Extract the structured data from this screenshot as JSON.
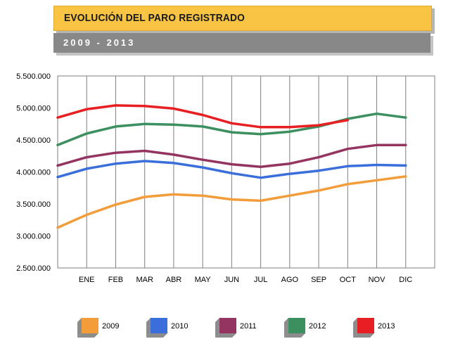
{
  "header": {
    "title": "EVOLUCIÓN DEL PARO REGISTRADO",
    "subtitle": "2009 - 2013"
  },
  "colors": {
    "title_band": "#f9c443",
    "subtitle_band": "#888888"
  },
  "chart_data": {
    "type": "line",
    "title": "",
    "xlabel": "",
    "ylabel": "",
    "categories": [
      "",
      "ENE",
      "FEB",
      "MAR",
      "ABR",
      "MAY",
      "JUN",
      "JUL",
      "AGO",
      "SEP",
      "OCT",
      "NOV",
      "DIC"
    ],
    "yticks": [
      2500000,
      3000000,
      3500000,
      4000000,
      4500000,
      5000000,
      5500000
    ],
    "ytick_labels": [
      "2.500.000",
      "3.000.000",
      "3.500.000",
      "4.000.000",
      "4.500.000",
      "5.000.000",
      "5.500.000"
    ],
    "ylim": [
      2500000,
      5500000
    ],
    "grid": "vertical",
    "legend_position": "bottom",
    "series": [
      {
        "name": "2009",
        "color": "#f39c3a",
        "values": [
          3130000,
          3330000,
          3490000,
          3610000,
          3650000,
          3630000,
          3570000,
          3550000,
          3630000,
          3710000,
          3810000,
          3870000,
          3930000
        ]
      },
      {
        "name": "2010",
        "color": "#3a6fdb",
        "values": [
          3920000,
          4050000,
          4130000,
          4170000,
          4140000,
          4070000,
          3980000,
          3910000,
          3970000,
          4020000,
          4090000,
          4110000,
          4100000
        ]
      },
      {
        "name": "2011",
        "color": "#943461",
        "values": [
          4100000,
          4230000,
          4300000,
          4330000,
          4270000,
          4190000,
          4120000,
          4080000,
          4130000,
          4230000,
          4360000,
          4420000,
          4420000
        ]
      },
      {
        "name": "2012",
        "color": "#3c8f5e",
        "values": [
          4420000,
          4600000,
          4710000,
          4750000,
          4740000,
          4710000,
          4620000,
          4590000,
          4630000,
          4710000,
          4830000,
          4910000,
          4850000
        ]
      },
      {
        "name": "2013",
        "color": "#e81f22",
        "values": [
          4850000,
          4980000,
          5040000,
          5030000,
          4990000,
          4890000,
          4760000,
          4700000,
          4700000,
          4730000,
          4810000,
          null,
          null
        ]
      }
    ]
  }
}
